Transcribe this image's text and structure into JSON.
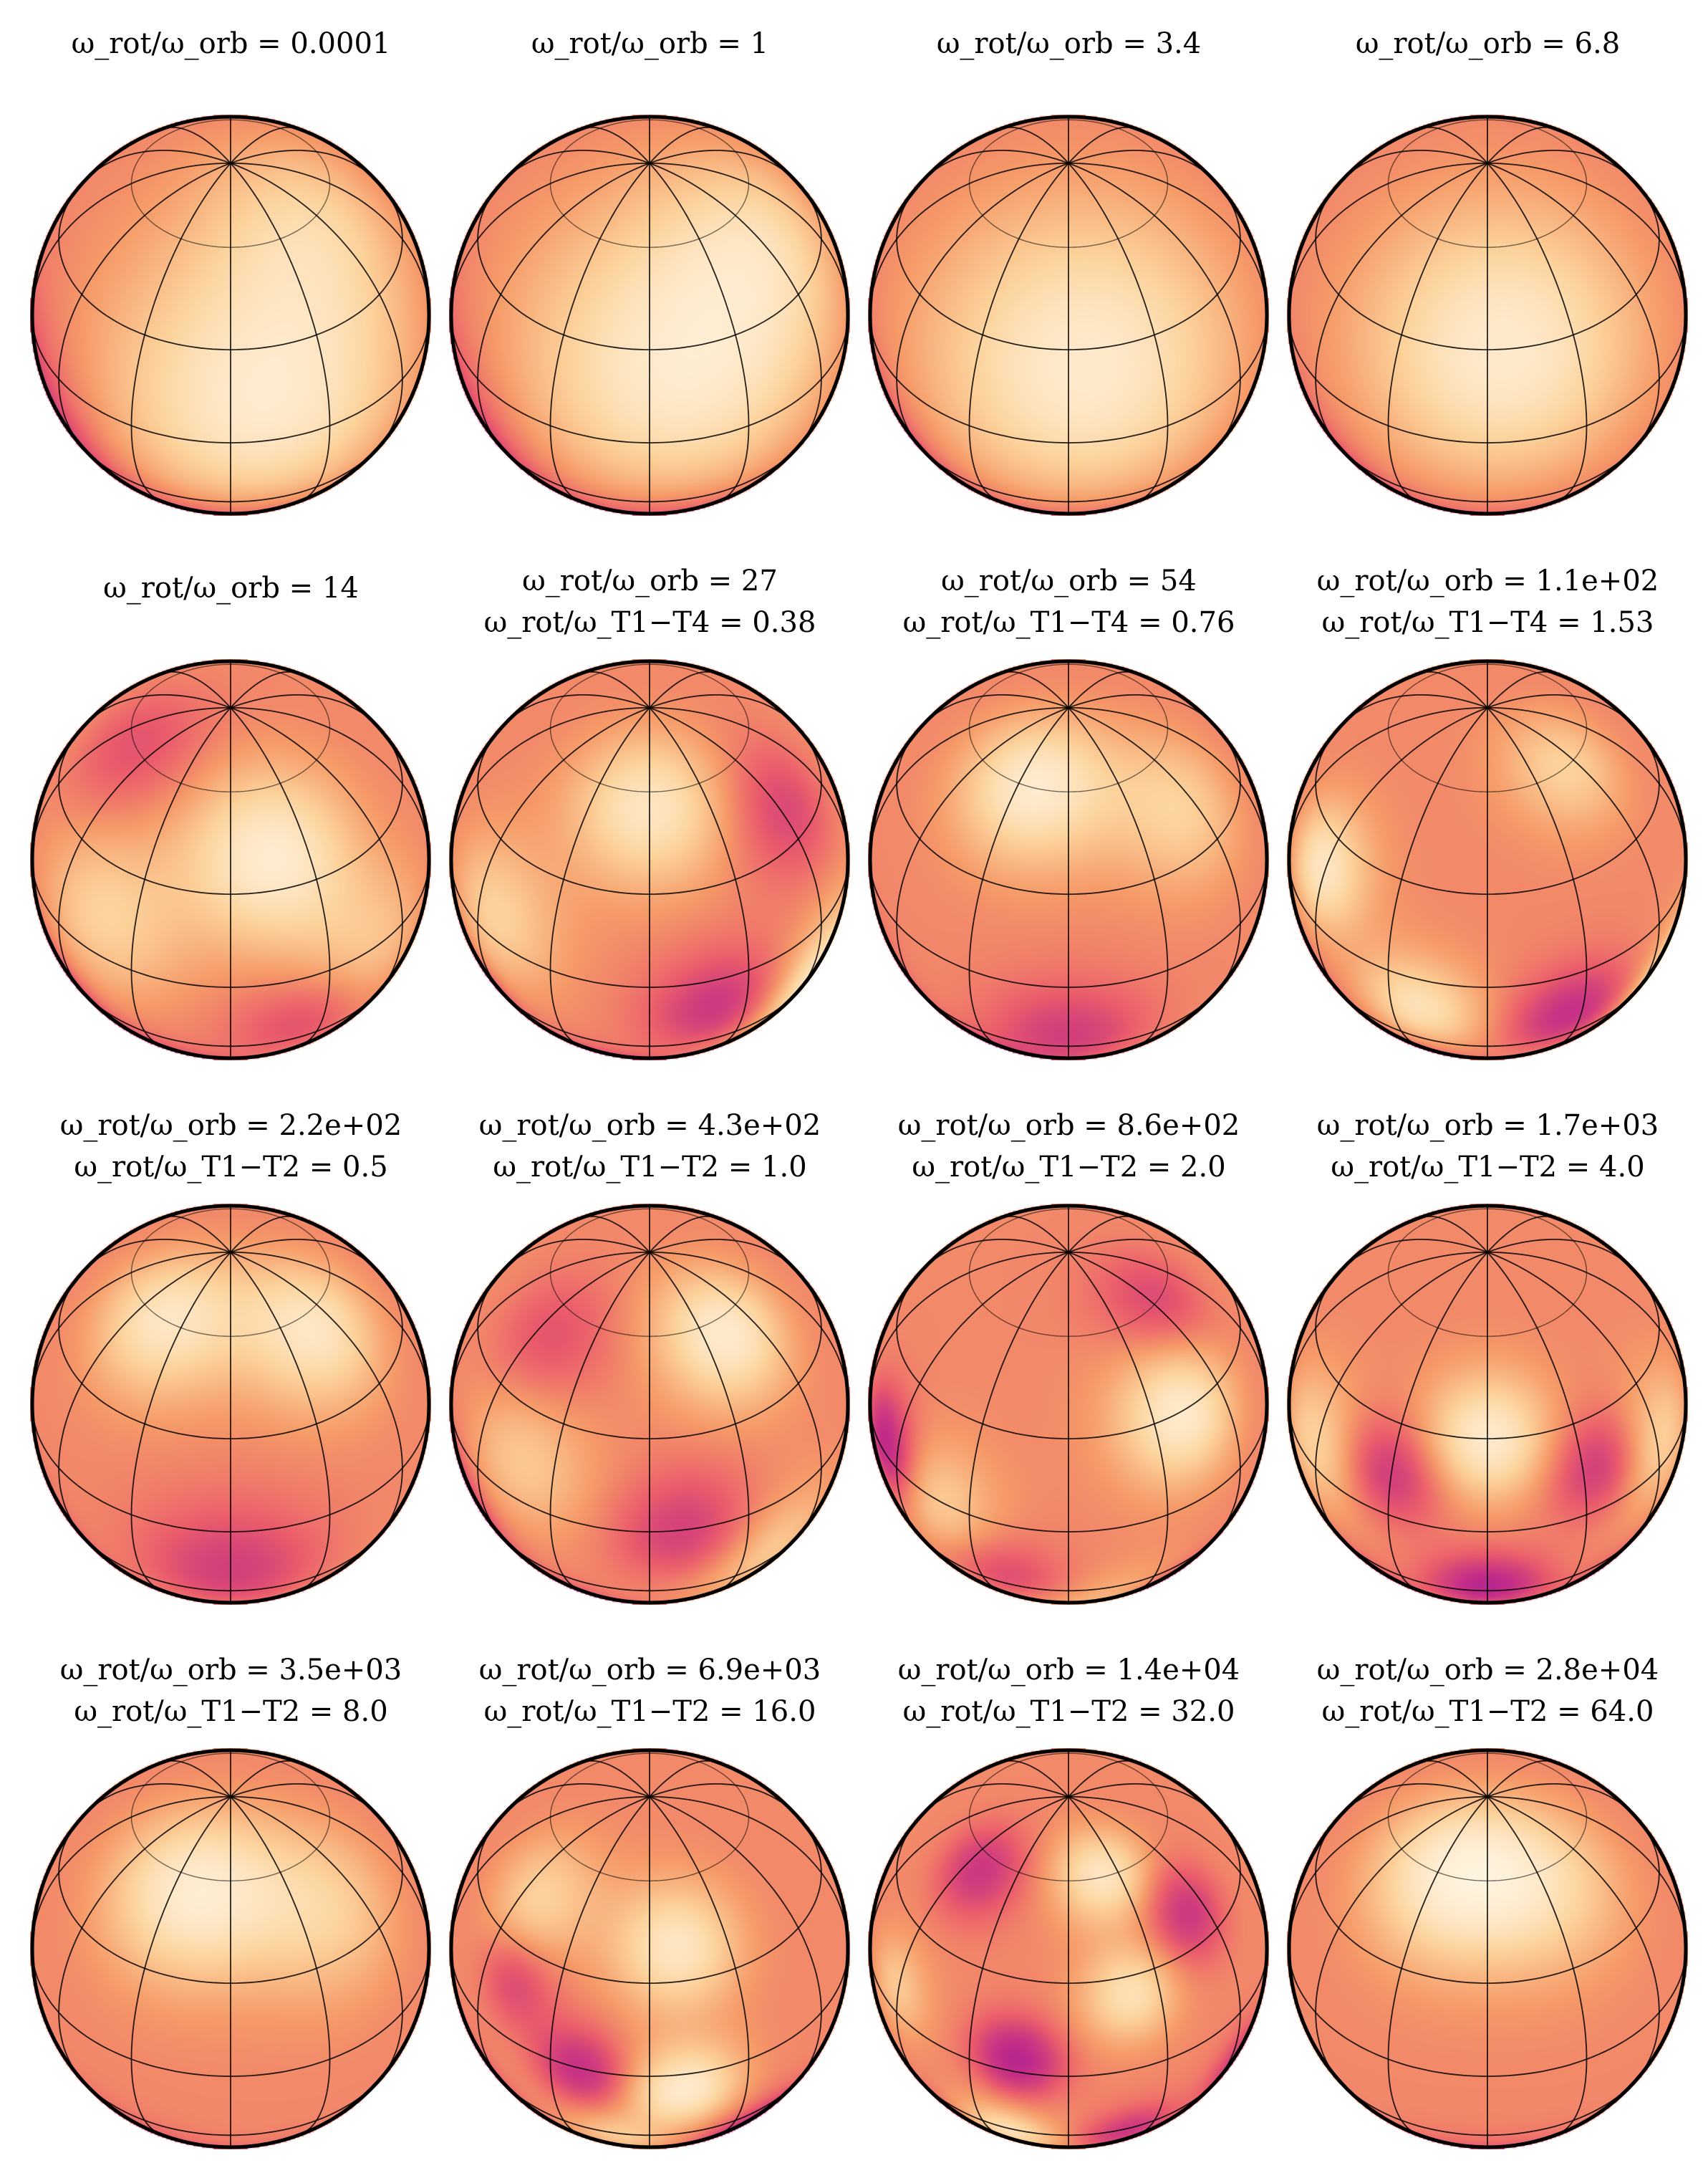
{
  "figure": {
    "panels": [
      {
        "ratio_label": "ω_rot/ω_orb",
        "ratio_value": "0.0001",
        "mode_label": "",
        "mode_value": "",
        "blobs": [
          {
            "lat": 15,
            "lon": 10,
            "amp": 1.0,
            "w": 45
          },
          {
            "lat": 60,
            "lon": 50,
            "amp": 0.5,
            "w": 30
          },
          {
            "lat": -30,
            "lon": -80,
            "amp": -0.9,
            "w": 35
          },
          {
            "lat": -55,
            "lon": 0,
            "amp": -0.5,
            "w": 30
          }
        ]
      },
      {
        "ratio_label": "ω_rot/ω_orb",
        "ratio_value": "1",
        "mode_label": "",
        "mode_value": "",
        "blobs": [
          {
            "lat": 25,
            "lon": 10,
            "amp": 1.0,
            "w": 45
          },
          {
            "lat": 50,
            "lon": 60,
            "amp": 0.5,
            "w": 30
          },
          {
            "lat": -35,
            "lon": -80,
            "amp": -0.9,
            "w": 35
          },
          {
            "lat": -55,
            "lon": 10,
            "amp": -0.5,
            "w": 30
          }
        ]
      },
      {
        "ratio_label": "ω_rot/ω_orb",
        "ratio_value": "3.4",
        "mode_label": "",
        "mode_value": "",
        "blobs": [
          {
            "lat": 25,
            "lon": 5,
            "amp": 1.0,
            "w": 45
          },
          {
            "lat": -40,
            "lon": -80,
            "amp": -0.9,
            "w": 30
          },
          {
            "lat": -60,
            "lon": 0,
            "amp": -0.4,
            "w": 30
          }
        ]
      },
      {
        "ratio_label": "ω_rot/ω_orb",
        "ratio_value": "6.8",
        "mode_label": "",
        "mode_value": "",
        "blobs": [
          {
            "lat": 30,
            "lon": 5,
            "amp": 1.0,
            "w": 40
          },
          {
            "lat": -45,
            "lon": -75,
            "amp": -1.0,
            "w": 28
          },
          {
            "lat": -65,
            "lon": 0,
            "amp": -0.5,
            "w": 28
          }
        ]
      },
      {
        "ratio_label": "ω_rot/ω_orb",
        "ratio_value": "14",
        "mode_label": "",
        "mode_value": "",
        "blobs": [
          {
            "lat": 40,
            "lon": 15,
            "amp": 1.0,
            "w": 25
          },
          {
            "lat": 15,
            "lon": -40,
            "amp": 0.6,
            "w": 25
          },
          {
            "lat": 0,
            "lon": 40,
            "amp": 0.6,
            "w": 25
          },
          {
            "lat": -35,
            "lon": -70,
            "amp": -1.0,
            "w": 20
          },
          {
            "lat": -55,
            "lon": -30,
            "amp": -0.8,
            "w": 20
          },
          {
            "lat": -15,
            "lon": 25,
            "amp": -0.6,
            "w": 22
          },
          {
            "lat": 60,
            "lon": -70,
            "amp": -0.4,
            "w": 22
          }
        ]
      },
      {
        "ratio_label": "ω_rot/ω_orb",
        "ratio_value": "27",
        "mode_label": "ω_rot/ω_T1−T4",
        "mode_value": "0.38",
        "blobs": [
          {
            "lat": 55,
            "lon": 0,
            "amp": 0.9,
            "w": 22
          },
          {
            "lat": 10,
            "lon": -50,
            "amp": 0.6,
            "w": 22
          },
          {
            "lat": -20,
            "lon": 60,
            "amp": 0.9,
            "w": 22
          },
          {
            "lat": -35,
            "lon": -70,
            "amp": -1.0,
            "w": 18
          },
          {
            "lat": -55,
            "lon": -20,
            "amp": -0.9,
            "w": 18
          },
          {
            "lat": -10,
            "lon": 20,
            "amp": -0.7,
            "w": 20
          },
          {
            "lat": 40,
            "lon": 60,
            "amp": -0.5,
            "w": 20
          }
        ]
      },
      {
        "ratio_label": "ω_rot/ω_orb",
        "ratio_value": "54",
        "mode_label": "ω_rot/ω_T1−T4",
        "mode_value": "0.76",
        "blobs": [
          {
            "lat": 60,
            "lon": -20,
            "amp": 1.0,
            "w": 22
          },
          {
            "lat": 45,
            "lon": 50,
            "amp": 0.6,
            "w": 22
          },
          {
            "lat": -55,
            "lon": -35,
            "amp": -1.0,
            "w": 20
          },
          {
            "lat": -20,
            "lon": 0,
            "amp": -0.6,
            "w": 22
          },
          {
            "lat": -30,
            "lon": -80,
            "amp": -0.6,
            "w": 20
          }
        ]
      },
      {
        "ratio_label": "ω_rot/ω_orb",
        "ratio_value": "1.1e+02",
        "mode_label": "ω_rot/ω_T1−T4",
        "mode_value": "1.53",
        "blobs": [
          {
            "lat": 20,
            "lon": -60,
            "amp": 0.9,
            "w": 18
          },
          {
            "lat": -10,
            "lon": -20,
            "amp": 0.8,
            "w": 18
          },
          {
            "lat": -25,
            "lon": 70,
            "amp": 0.9,
            "w": 18
          },
          {
            "lat": 60,
            "lon": 50,
            "amp": 0.6,
            "w": 18
          },
          {
            "lat": -35,
            "lon": -75,
            "amp": -1.0,
            "w": 16
          },
          {
            "lat": -55,
            "lon": -30,
            "amp": -1.0,
            "w": 16
          },
          {
            "lat": -15,
            "lon": 25,
            "amp": -0.8,
            "w": 18
          }
        ]
      },
      {
        "ratio_label": "ω_rot/ω_orb",
        "ratio_value": "2.2e+02",
        "mode_label": "ω_rot/ω_T1−T2",
        "mode_value": "0.5",
        "blobs": [
          {
            "lat": 60,
            "lon": -40,
            "amp": 0.9,
            "w": 22
          },
          {
            "lat": 55,
            "lon": 45,
            "amp": 0.9,
            "w": 22
          },
          {
            "lat": -40,
            "lon": -80,
            "amp": -1.0,
            "w": 22
          },
          {
            "lat": -15,
            "lon": 0,
            "amp": -0.6,
            "w": 25
          }
        ]
      },
      {
        "ratio_label": "ω_rot/ω_orb",
        "ratio_value": "4.3e+02",
        "mode_label": "ω_rot/ω_T1−T2",
        "mode_value": "1.0",
        "blobs": [
          {
            "lat": 55,
            "lon": 40,
            "amp": 1.0,
            "w": 20
          },
          {
            "lat": 15,
            "lon": -40,
            "amp": 0.5,
            "w": 22
          },
          {
            "lat": -20,
            "lon": 40,
            "amp": 0.5,
            "w": 22
          },
          {
            "lat": -55,
            "lon": -35,
            "amp": -1.0,
            "w": 18
          },
          {
            "lat": -25,
            "lon": -75,
            "amp": -0.9,
            "w": 20
          },
          {
            "lat": 0,
            "lon": 10,
            "amp": -0.6,
            "w": 20
          },
          {
            "lat": 50,
            "lon": -50,
            "amp": -0.4,
            "w": 20
          }
        ]
      },
      {
        "ratio_label": "ω_rot/ω_orb",
        "ratio_value": "8.6e+02",
        "mode_label": "ω_rot/ω_T1−T2",
        "mode_value": "2.0",
        "blobs": [
          {
            "lat": 30,
            "lon": 40,
            "amp": 1.0,
            "w": 20
          },
          {
            "lat": 0,
            "lon": -40,
            "amp": 0.6,
            "w": 20
          },
          {
            "lat": -40,
            "lon": 20,
            "amp": 0.5,
            "w": 20
          },
          {
            "lat": 5,
            "lon": -65,
            "amp": -1.0,
            "w": 16
          },
          {
            "lat": -45,
            "lon": 40,
            "amp": -1.0,
            "w": 16
          },
          {
            "lat": 60,
            "lon": 60,
            "amp": -0.5,
            "w": 18
          },
          {
            "lat": -20,
            "lon": -20,
            "amp": -0.5,
            "w": 18
          }
        ]
      },
      {
        "ratio_label": "ω_rot/ω_orb",
        "ratio_value": "1.7e+03",
        "mode_label": "ω_rot/ω_T1−T2",
        "mode_value": "4.0",
        "blobs": [
          {
            "lat": 30,
            "lon": 0,
            "amp": 1.0,
            "w": 18
          },
          {
            "lat": 10,
            "lon": -60,
            "amp": 0.6,
            "w": 20
          },
          {
            "lat": 10,
            "lon": 60,
            "amp": 0.6,
            "w": 20
          },
          {
            "lat": -25,
            "lon": 0,
            "amp": -1.0,
            "w": 16
          },
          {
            "lat": 15,
            "lon": -30,
            "amp": -0.7,
            "w": 16
          },
          {
            "lat": 15,
            "lon": 35,
            "amp": -0.7,
            "w": 16
          },
          {
            "lat": -45,
            "lon": -50,
            "amp": -0.6,
            "w": 18
          },
          {
            "lat": -45,
            "lon": 50,
            "amp": -0.6,
            "w": 18
          }
        ]
      },
      {
        "ratio_label": "ω_rot/ω_orb",
        "ratio_value": "3.5e+03",
        "mode_label": "ω_rot/ω_T1−T2",
        "mode_value": "8.0",
        "blobs": [
          {
            "lat": 55,
            "lon": -20,
            "amp": 1.0,
            "w": 25
          },
          {
            "lat": 45,
            "lon": 40,
            "amp": 0.6,
            "w": 25
          },
          {
            "lat": -60,
            "lon": -50,
            "amp": -0.9,
            "w": 25
          },
          {
            "lat": -70,
            "lon": 20,
            "amp": -0.5,
            "w": 25
          }
        ]
      },
      {
        "ratio_label": "ω_rot/ω_orb",
        "ratio_value": "6.9e+03",
        "mode_label": "ω_rot/ω_T1−T2",
        "mode_value": "16.0",
        "blobs": [
          {
            "lat": 40,
            "lon": 10,
            "amp": 0.9,
            "w": 18
          },
          {
            "lat": -5,
            "lon": 10,
            "amp": 1.0,
            "w": 16
          },
          {
            "lat": 45,
            "lon": -50,
            "amp": 0.6,
            "w": 18
          },
          {
            "lat": 0,
            "lon": -20,
            "amp": -0.8,
            "w": 14
          },
          {
            "lat": -40,
            "lon": 40,
            "amp": -1.0,
            "w": 16
          },
          {
            "lat": -35,
            "lon": -70,
            "amp": -0.8,
            "w": 18
          },
          {
            "lat": 20,
            "lon": -45,
            "amp": -0.5,
            "w": 14
          },
          {
            "lat": -30,
            "lon": -10,
            "amp": 0.5,
            "w": 14
          }
        ]
      },
      {
        "ratio_label": "ω_rot/ω_orb",
        "ratio_value": "1.4e+04",
        "mode_label": "ω_rot/ω_T1−T2",
        "mode_value": "32.0",
        "blobs": [
          {
            "lat": 5,
            "lon": -15,
            "amp": -1.0,
            "w": 13
          },
          {
            "lat": 55,
            "lon": -50,
            "amp": -0.7,
            "w": 14
          },
          {
            "lat": 40,
            "lon": 50,
            "amp": -0.7,
            "w": 14
          },
          {
            "lat": -30,
            "lon": 20,
            "amp": -0.7,
            "w": 14
          },
          {
            "lat": -20,
            "lon": 60,
            "amp": -0.6,
            "w": 14
          },
          {
            "lat": 60,
            "lon": 20,
            "amp": 0.9,
            "w": 14
          },
          {
            "lat": 25,
            "lon": 20,
            "amp": 0.8,
            "w": 14
          },
          {
            "lat": -30,
            "lon": -20,
            "amp": 0.8,
            "w": 14
          },
          {
            "lat": -40,
            "lon": -50,
            "amp": -0.5,
            "w": 14
          },
          {
            "lat": 10,
            "lon": -60,
            "amp": 0.5,
            "w": 14
          }
        ]
      },
      {
        "ratio_label": "ω_rot/ω_orb",
        "ratio_value": "2.8e+04",
        "mode_label": "ω_rot/ω_T1−T2",
        "mode_value": "64.0",
        "blobs": [
          {
            "lat": 60,
            "lon": -20,
            "amp": 1.0,
            "w": 25
          },
          {
            "lat": 55,
            "lon": 30,
            "amp": 0.6,
            "w": 25
          },
          {
            "lat": -65,
            "lon": 0,
            "amp": -0.9,
            "w": 25
          }
        ]
      }
    ]
  },
  "colormap": {
    "name": "magma",
    "stops": [
      "#1d11c9",
      "#6a1ca6",
      "#c32b8a",
      "#ea5c6b",
      "#f59a68",
      "#fcd29b",
      "#fffbee"
    ]
  }
}
